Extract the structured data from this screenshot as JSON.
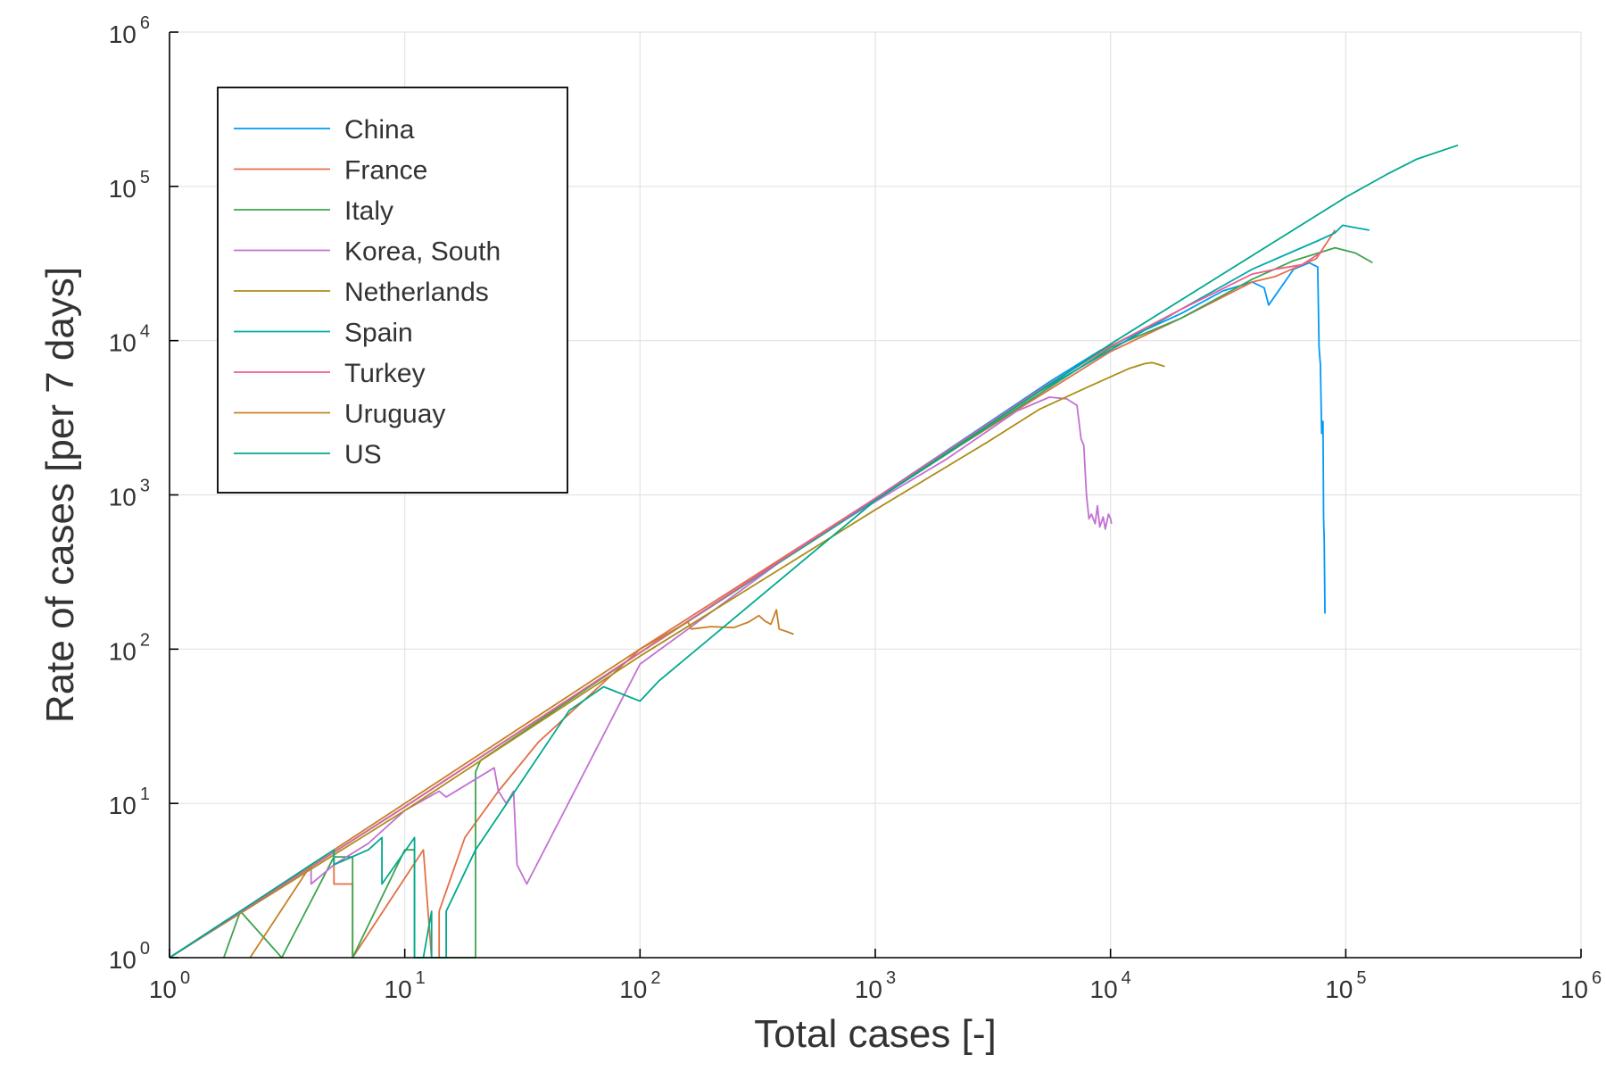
{
  "chart_data": {
    "type": "line",
    "xlabel": "Total cases [-]",
    "ylabel": "Rate of cases [per 7 days]",
    "x_scale": "log",
    "y_scale": "log",
    "xlim": [
      1,
      1000000
    ],
    "ylim": [
      1,
      1000000
    ],
    "x_ticks": [
      {
        "base": "10",
        "exp": "0",
        "value": 1
      },
      {
        "base": "10",
        "exp": "1",
        "value": 10
      },
      {
        "base": "10",
        "exp": "2",
        "value": 100
      },
      {
        "base": "10",
        "exp": "3",
        "value": 1000
      },
      {
        "base": "10",
        "exp": "4",
        "value": 10000
      },
      {
        "base": "10",
        "exp": "5",
        "value": 100000
      },
      {
        "base": "10",
        "exp": "6",
        "value": 1000000
      }
    ],
    "y_ticks": [
      {
        "base": "10",
        "exp": "0",
        "value": 1
      },
      {
        "base": "10",
        "exp": "1",
        "value": 10
      },
      {
        "base": "10",
        "exp": "2",
        "value": 100
      },
      {
        "base": "10",
        "exp": "3",
        "value": 1000
      },
      {
        "base": "10",
        "exp": "4",
        "value": 10000
      },
      {
        "base": "10",
        "exp": "5",
        "value": 100000
      },
      {
        "base": "10",
        "exp": "6",
        "value": 1000000
      }
    ],
    "grid": true,
    "legend_position": "top-left",
    "series": [
      {
        "name": "China",
        "color": "#009af9",
        "points": [
          [
            1,
            1
          ],
          [
            10,
            9.5
          ],
          [
            1000,
            950
          ],
          [
            5500,
            5400
          ],
          [
            9000,
            8600
          ],
          [
            20000,
            15000
          ],
          [
            30000,
            21000
          ],
          [
            40000,
            24000
          ],
          [
            45000,
            22000
          ],
          [
            47000,
            17000
          ],
          [
            55000,
            24000
          ],
          [
            60000,
            29000
          ],
          [
            70000,
            32000
          ],
          [
            76000,
            30000
          ],
          [
            77000,
            9000
          ],
          [
            78000,
            7000
          ],
          [
            79000,
            2500
          ],
          [
            80000,
            3000
          ],
          [
            80500,
            700
          ],
          [
            81000,
            500
          ],
          [
            81500,
            200
          ],
          [
            81600,
            170
          ]
        ]
      },
      {
        "name": "France",
        "color": "#e26f46",
        "points": [
          [
            5,
            5
          ],
          [
            5,
            3
          ],
          [
            6,
            3
          ],
          [
            6,
            1
          ],
          [
            12,
            5
          ],
          [
            13,
            1
          ],
          [
            14,
            1
          ],
          [
            14,
            2
          ],
          [
            18,
            6
          ],
          [
            25,
            12
          ],
          [
            37,
            25
          ],
          [
            100,
            100
          ],
          [
            1000,
            950
          ],
          [
            10000,
            8500
          ],
          [
            20000,
            14000
          ],
          [
            40000,
            24000
          ],
          [
            50000,
            26000
          ],
          [
            65000,
            31000
          ],
          [
            75000,
            34000
          ],
          [
            90000,
            52000
          ]
        ]
      },
      {
        "name": "Italy",
        "color": "#3da44d",
        "points": [
          [
            1.7,
            1
          ],
          [
            2,
            2
          ],
          [
            3,
            1
          ],
          [
            5,
            4.5
          ],
          [
            6,
            4.5
          ],
          [
            6,
            1
          ],
          [
            10,
            5
          ],
          [
            11,
            5
          ],
          [
            11,
            1
          ],
          [
            20,
            1
          ],
          [
            20,
            16
          ],
          [
            21,
            19
          ],
          [
            100,
            95
          ],
          [
            1000,
            920
          ],
          [
            10000,
            9000
          ],
          [
            20000,
            14000
          ],
          [
            40000,
            25000
          ],
          [
            60000,
            33000
          ],
          [
            90000,
            40000
          ],
          [
            110000,
            37000
          ],
          [
            130000,
            32000
          ]
        ]
      },
      {
        "name": "Korea, South",
        "color": "#c271d2",
        "points": [
          [
            1,
            1
          ],
          [
            4,
            4
          ],
          [
            4,
            3
          ],
          [
            5,
            4
          ],
          [
            7,
            5.5
          ],
          [
            10,
            9
          ],
          [
            14,
            12
          ],
          [
            15,
            11
          ],
          [
            24,
            17
          ],
          [
            25,
            12
          ],
          [
            27,
            10
          ],
          [
            29,
            12
          ],
          [
            30,
            4
          ],
          [
            33,
            3
          ],
          [
            100,
            80
          ],
          [
            500,
            480
          ],
          [
            2000,
            1700
          ],
          [
            4000,
            3500
          ],
          [
            5500,
            4300
          ],
          [
            6500,
            4200
          ],
          [
            7200,
            3800
          ],
          [
            7500,
            2300
          ],
          [
            7700,
            2100
          ],
          [
            7900,
            1000
          ],
          [
            8100,
            700
          ],
          [
            8300,
            750
          ],
          [
            8600,
            650
          ],
          [
            8800,
            850
          ],
          [
            9000,
            620
          ],
          [
            9300,
            720
          ],
          [
            9500,
            600
          ],
          [
            9800,
            750
          ],
          [
            10000,
            700
          ],
          [
            10100,
            650
          ]
        ]
      },
      {
        "name": "Netherlands",
        "color": "#ac8e18",
        "points": [
          [
            1,
            1
          ],
          [
            10,
            9
          ],
          [
            100,
            90
          ],
          [
            1000,
            800
          ],
          [
            3000,
            2200
          ],
          [
            5000,
            3600
          ],
          [
            8000,
            5000
          ],
          [
            12000,
            6600
          ],
          [
            14000,
            7100
          ],
          [
            15000,
            7200
          ],
          [
            16000,
            7000
          ],
          [
            17000,
            6800
          ]
        ]
      },
      {
        "name": "Spain",
        "color": "#00a9ad",
        "points": [
          [
            1,
            1
          ],
          [
            10,
            9.5
          ],
          [
            100,
            95
          ],
          [
            1000,
            930
          ],
          [
            5000,
            4700
          ],
          [
            10000,
            8700
          ],
          [
            20000,
            16000
          ],
          [
            40000,
            29000
          ],
          [
            60000,
            38000
          ],
          [
            75000,
            44000
          ],
          [
            90000,
            50000
          ],
          [
            97000,
            56000
          ],
          [
            110000,
            54000
          ],
          [
            126000,
            52000
          ]
        ]
      },
      {
        "name": "Turkey",
        "color": "#ed5d92",
        "points": [
          [
            1,
            1
          ],
          [
            10,
            9.5
          ],
          [
            100,
            95
          ],
          [
            1000,
            950
          ],
          [
            5000,
            4800
          ],
          [
            10000,
            9200
          ],
          [
            20000,
            16000
          ],
          [
            40000,
            27000
          ],
          [
            50000,
            29000
          ],
          [
            65000,
            31000
          ],
          [
            80000,
            38000
          ]
        ]
      },
      {
        "name": "Uruguay",
        "color": "#c68125",
        "points": [
          [
            2.2,
            1
          ],
          [
            4,
            4
          ],
          [
            5,
            5
          ],
          [
            10,
            10
          ],
          [
            100,
            100
          ],
          [
            160,
            150
          ],
          [
            165,
            135
          ],
          [
            200,
            140
          ],
          [
            250,
            138
          ],
          [
            290,
            150
          ],
          [
            320,
            165
          ],
          [
            340,
            152
          ],
          [
            360,
            145
          ],
          [
            380,
            180
          ],
          [
            390,
            135
          ],
          [
            420,
            130
          ],
          [
            450,
            125
          ]
        ]
      },
      {
        "name": "US",
        "color": "#00a98d",
        "points": [
          [
            1,
            1
          ],
          [
            4,
            4
          ],
          [
            5,
            5
          ],
          [
            5,
            4
          ],
          [
            7,
            5
          ],
          [
            8,
            6
          ],
          [
            8,
            3
          ],
          [
            11,
            6
          ],
          [
            11,
            1
          ],
          [
            12,
            1
          ],
          [
            13,
            2
          ],
          [
            13,
            1
          ],
          [
            15,
            1
          ],
          [
            15,
            2
          ],
          [
            20,
            5
          ],
          [
            50,
            40
          ],
          [
            70,
            57
          ],
          [
            100,
            46
          ],
          [
            120,
            62
          ],
          [
            1000,
            920
          ],
          [
            10000,
            9500
          ],
          [
            100000,
            85000
          ],
          [
            150000,
            120000
          ],
          [
            200000,
            150000
          ],
          [
            300000,
            185000
          ]
        ]
      }
    ]
  }
}
